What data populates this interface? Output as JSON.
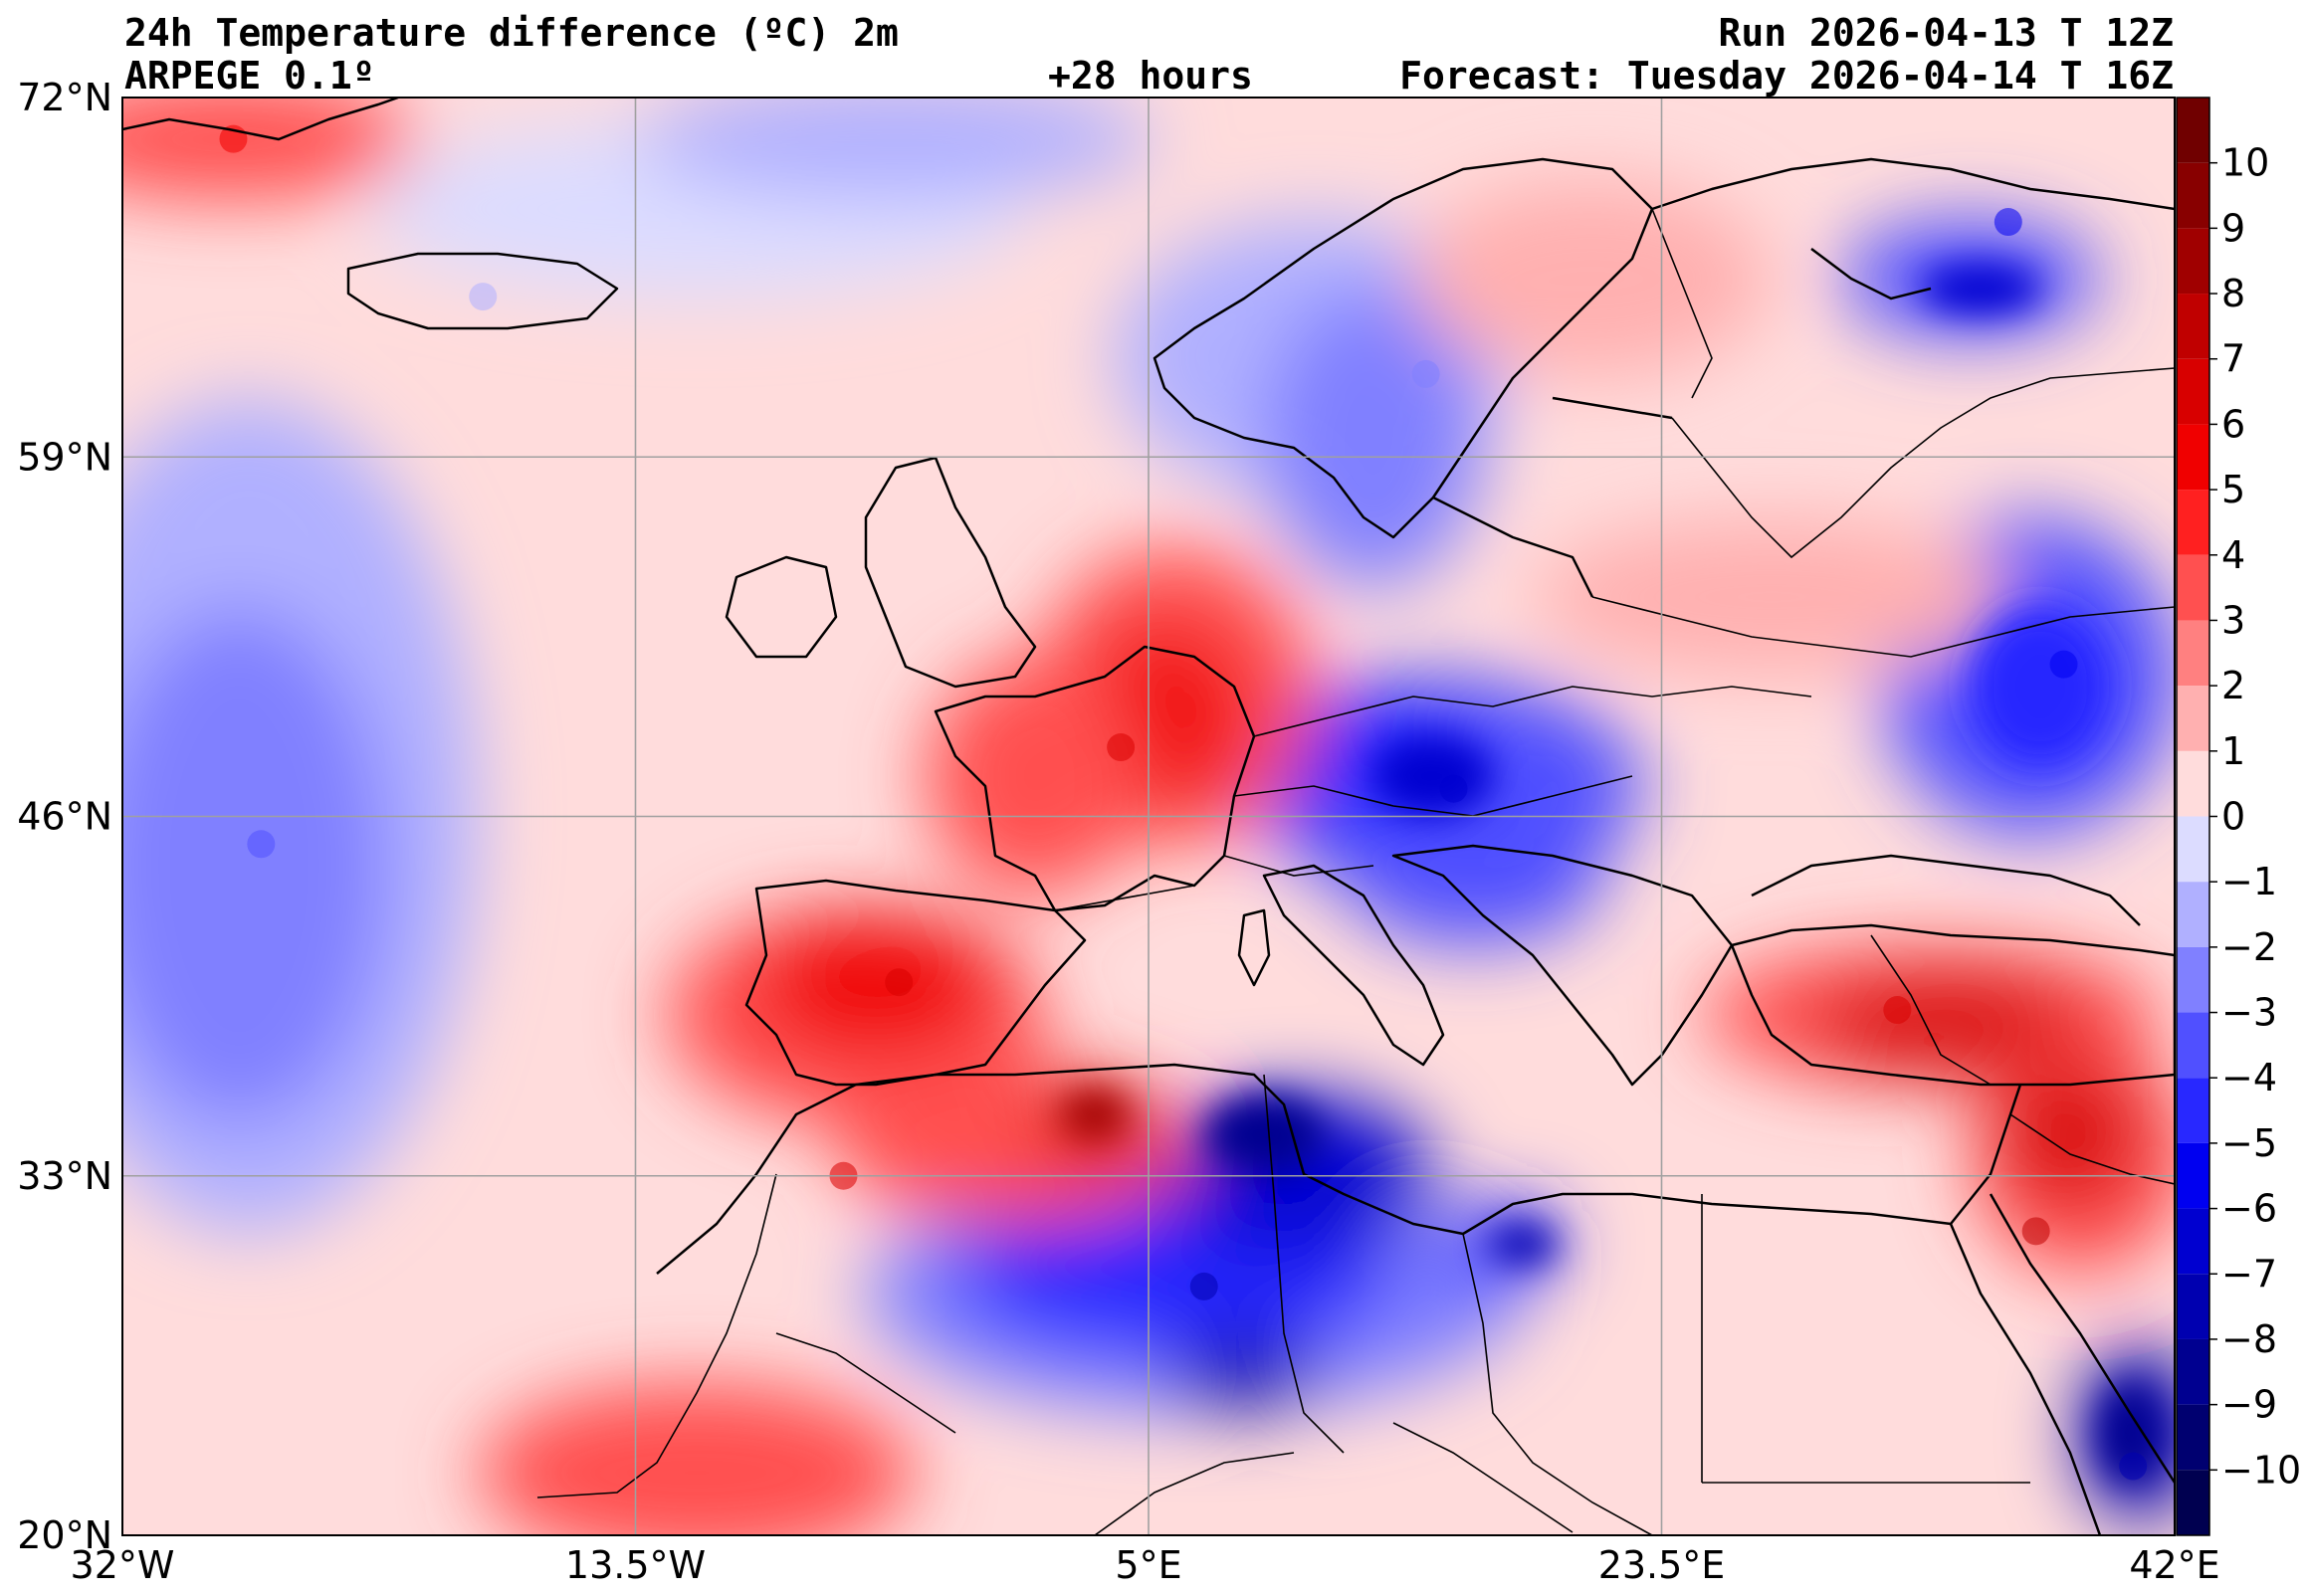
{
  "header": {
    "title": "24h Temperature difference (ºC) 2m",
    "model": "ARPEGE 0.1º",
    "lead": "+28 hours",
    "run": "Run 2026-04-13 T 12Z",
    "forecast": "Forecast: Tuesday 2026-04-14 T 16Z"
  },
  "map": {
    "lon_range": [
      -32,
      42
    ],
    "lat_range": [
      20,
      72
    ],
    "lat_ticks": [
      {
        "value": 72,
        "label": "72°N"
      },
      {
        "value": 59,
        "label": "59°N"
      },
      {
        "value": 46,
        "label": "46°N"
      },
      {
        "value": 33,
        "label": "33°N"
      },
      {
        "value": 20,
        "label": "20°N"
      }
    ],
    "lon_ticks": [
      {
        "value": -32,
        "label": "32°W"
      },
      {
        "value": -13.5,
        "label": "13.5°W"
      },
      {
        "value": 5,
        "label": "5°E"
      },
      {
        "value": 23.5,
        "label": "23.5°E"
      },
      {
        "value": 42,
        "label": "42°E"
      }
    ],
    "grid": true
  },
  "colorbar": {
    "min": -11,
    "max": 11,
    "labels": [
      {
        "value": 10,
        "label": "10"
      },
      {
        "value": 9,
        "label": "9"
      },
      {
        "value": 8,
        "label": "8"
      },
      {
        "value": 7,
        "label": "7"
      },
      {
        "value": 6,
        "label": "6"
      },
      {
        "value": 5,
        "label": "5"
      },
      {
        "value": 4,
        "label": "4"
      },
      {
        "value": 3,
        "label": "3"
      },
      {
        "value": 2,
        "label": "2"
      },
      {
        "value": 1,
        "label": "1"
      },
      {
        "value": 0,
        "label": "0"
      },
      {
        "value": -1,
        "label": "−1"
      },
      {
        "value": -2,
        "label": "−2"
      },
      {
        "value": -3,
        "label": "−3"
      },
      {
        "value": -4,
        "label": "−4"
      },
      {
        "value": -5,
        "label": "−5"
      },
      {
        "value": -6,
        "label": "−6"
      },
      {
        "value": -7,
        "label": "−7"
      },
      {
        "value": -8,
        "label": "−8"
      },
      {
        "value": -9,
        "label": "−9"
      },
      {
        "value": -10,
        "label": "−10"
      }
    ],
    "colors_warm": [
      "#ffdcdc",
      "#ffb0b0",
      "#ff8080",
      "#ff5050",
      "#ff2020",
      "#f00000",
      "#d80000",
      "#c00000",
      "#a00000",
      "#880000",
      "#700000"
    ],
    "colors_cold": [
      "#dcdcff",
      "#b0b0ff",
      "#8080ff",
      "#5050ff",
      "#2828ff",
      "#0000f0",
      "#0000d0",
      "#0000b0",
      "#000090",
      "#000070",
      "#000050"
    ]
  },
  "regions": [
    {
      "name": "iceland",
      "lon": -19,
      "lat": 64.8,
      "sign": -1,
      "level": 1
    },
    {
      "name": "scandinavia",
      "lon": 15,
      "lat": 62,
      "sign": -1,
      "level": 2
    },
    {
      "name": "kola",
      "lon": 36,
      "lat": 67.5,
      "sign": -1,
      "level": 5
    },
    {
      "name": "russia",
      "lon": 38,
      "lat": 51.5,
      "sign": -1,
      "level": 5
    },
    {
      "name": "alps-balkans",
      "lon": 16,
      "lat": 47,
      "sign": -1,
      "level": 6
    },
    {
      "name": "algeria-libya",
      "lon": 7,
      "lat": 29,
      "sign": -1,
      "level": 7
    },
    {
      "name": "atlantic-west",
      "lon": -27,
      "lat": 45,
      "sign": -1,
      "level": 3
    },
    {
      "name": "iberia",
      "lon": -4,
      "lat": 40,
      "sign": 1,
      "level": 6
    },
    {
      "name": "france-germany",
      "lon": 4,
      "lat": 48.5,
      "sign": 1,
      "level": 6
    },
    {
      "name": "turkey",
      "lon": 32,
      "lat": 39,
      "sign": 1,
      "level": 6
    },
    {
      "name": "morocco",
      "lon": -6,
      "lat": 33,
      "sign": 1,
      "level": 6
    },
    {
      "name": "middle-east",
      "lon": 37,
      "lat": 31,
      "sign": 1,
      "level": 7
    },
    {
      "name": "greenland-se",
      "lon": -28,
      "lat": 70.5,
      "sign": 1,
      "level": 5
    },
    {
      "name": "red-sea",
      "lon": 40.5,
      "lat": 22.5,
      "sign": -1,
      "level": 7
    }
  ]
}
